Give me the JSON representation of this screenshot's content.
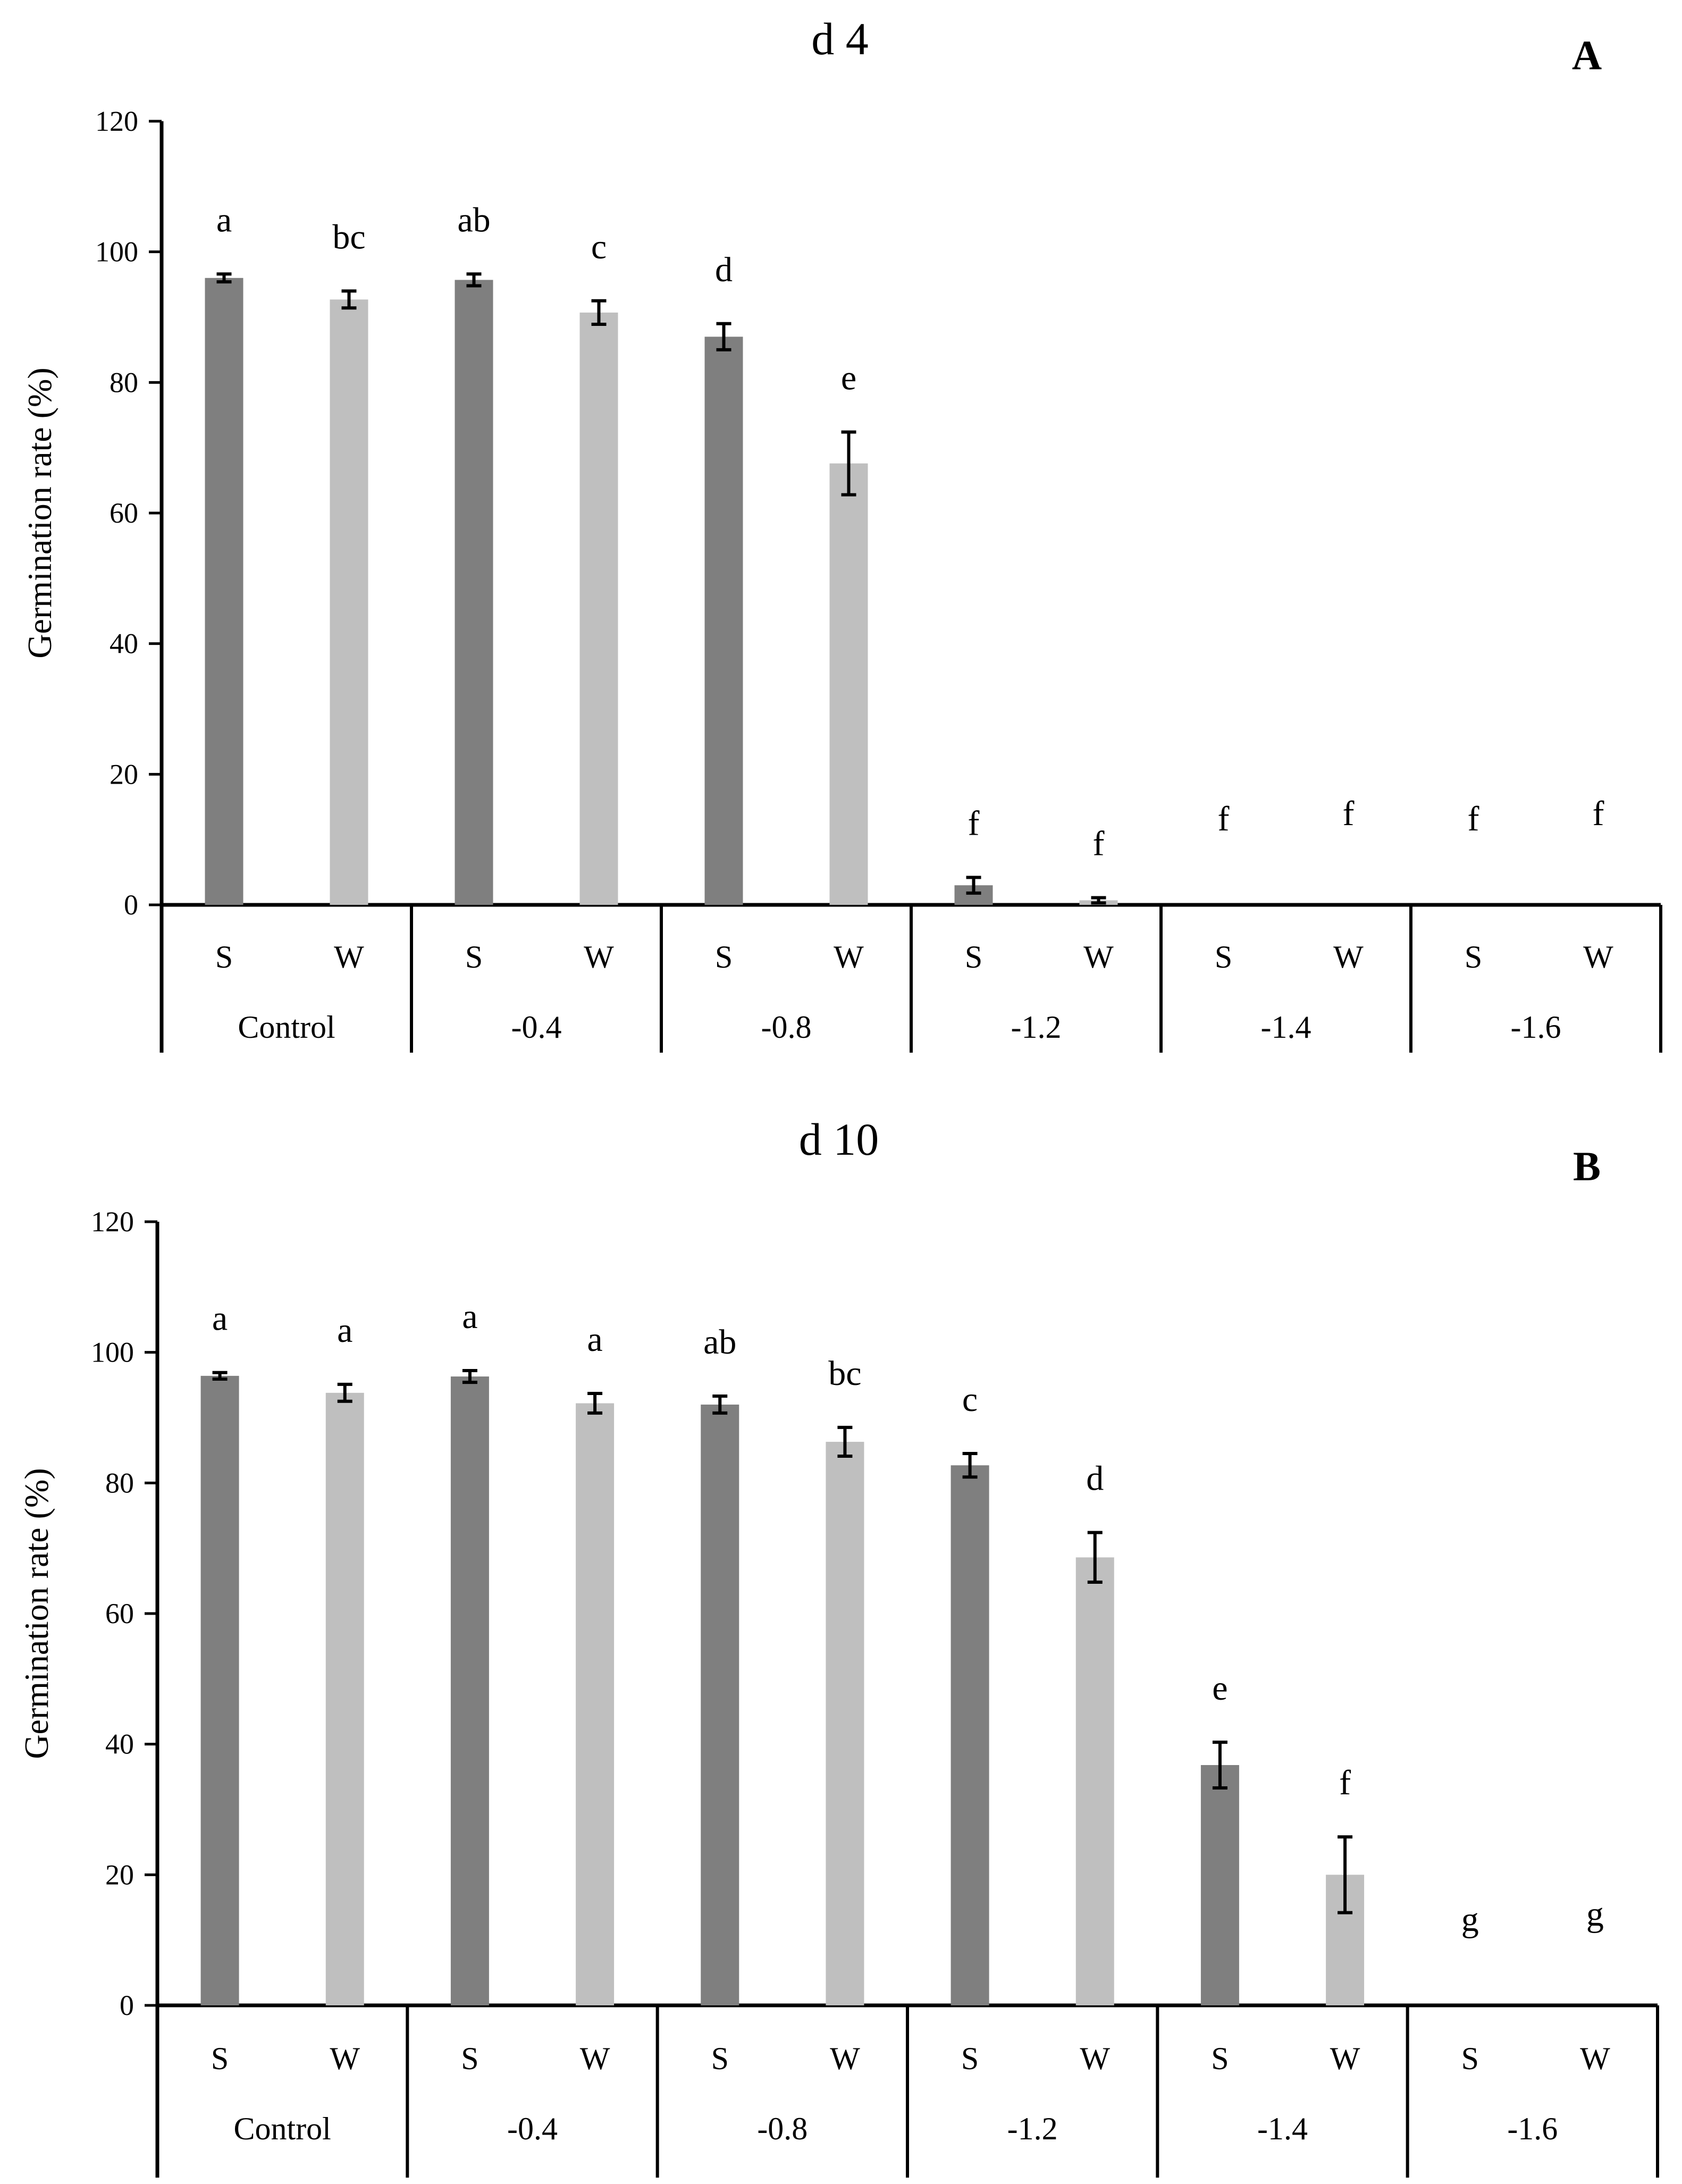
{
  "colors": {
    "S": "#7f7f7f",
    "W": "#bfbfbf",
    "axis": "#000000",
    "background": "#ffffff"
  },
  "chart_data": [
    {
      "type": "bar",
      "title": "d 4",
      "panel": "A",
      "ylabel": "Germination rate (%)",
      "ylim": [
        0,
        120
      ],
      "yticks": [
        "0",
        "20",
        "40",
        "60",
        "80",
        "100",
        "120"
      ],
      "groups": [
        "Control",
        "-0.4",
        "-0.8",
        "-1.2",
        "-1.4",
        "-1.6"
      ],
      "subcategories": [
        "S",
        "W"
      ],
      "series": [
        {
          "name": "S",
          "values": [
            96.0,
            95.7,
            87.0,
            3.0,
            0,
            0
          ],
          "errors": [
            0.6,
            0.9,
            2.0,
            1.2,
            0,
            0
          ]
        },
        {
          "name": "W",
          "values": [
            92.7,
            90.7,
            67.6,
            0.7,
            0,
            0
          ],
          "errors": [
            1.3,
            1.8,
            4.8,
            0.4,
            0,
            0
          ]
        }
      ],
      "significance": {
        "S": [
          "a",
          "ab",
          "d",
          "f",
          "f",
          "f"
        ],
        "W": [
          "bc",
          "c",
          "e",
          "f",
          "f",
          "f"
        ]
      },
      "grid": false,
      "legend": "none"
    },
    {
      "type": "bar",
      "title": "d 10",
      "panel": "B",
      "ylabel": "Germination rate (%)",
      "ylim": [
        0,
        120
      ],
      "yticks": [
        "0",
        "20",
        "40",
        "60",
        "80",
        "100",
        "120"
      ],
      "groups": [
        "Control",
        "-0.4",
        "-0.8",
        "-1.2",
        "-1.4",
        "-1.6"
      ],
      "subcategories": [
        "S",
        "W"
      ],
      "series": [
        {
          "name": "S",
          "values": [
            96.4,
            96.3,
            92.0,
            82.7,
            36.8,
            0
          ],
          "errors": [
            0.5,
            0.9,
            1.3,
            1.8,
            3.5,
            0
          ]
        },
        {
          "name": "W",
          "values": [
            93.8,
            92.2,
            86.3,
            68.6,
            20.0,
            0
          ],
          "errors": [
            1.3,
            1.5,
            2.2,
            3.8,
            5.8,
            0
          ]
        }
      ],
      "significance": {
        "S": [
          "a",
          "a",
          "ab",
          "c",
          "e",
          "g"
        ],
        "W": [
          "a",
          "a",
          "bc",
          "d",
          "f",
          "g"
        ]
      },
      "grid": false,
      "legend": "none"
    }
  ]
}
